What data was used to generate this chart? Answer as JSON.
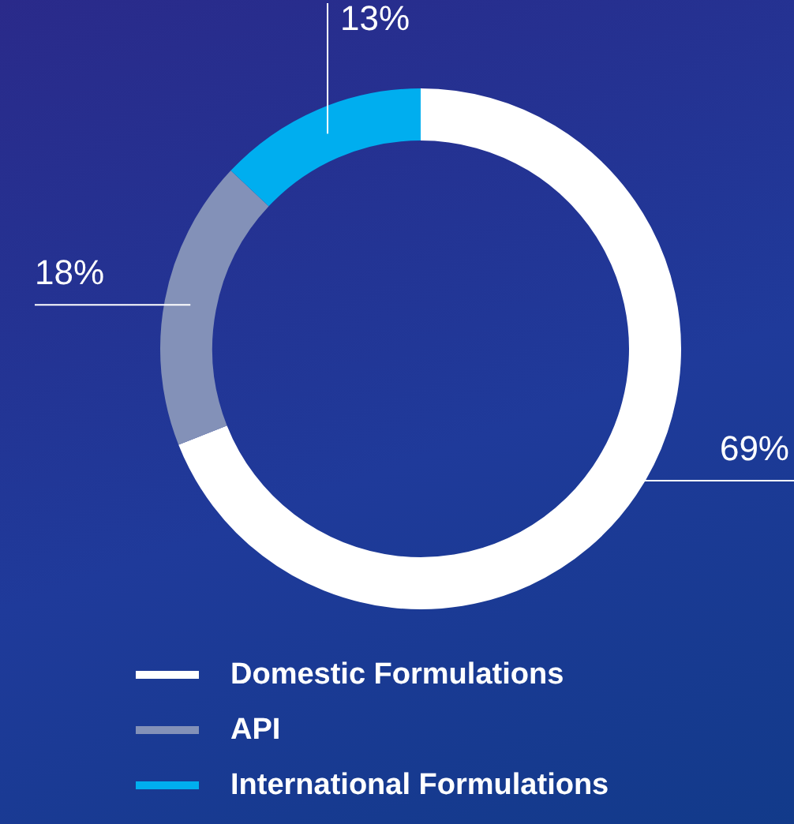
{
  "chart_data": {
    "type": "donut",
    "categories": [
      "Domestic Formulations",
      "API",
      "International Formulations"
    ],
    "values": [
      69,
      18,
      13
    ],
    "colors": [
      "#ffffff",
      "#8391b8",
      "#00aeef"
    ],
    "value_labels": [
      "69%",
      "18%",
      "13%"
    ],
    "legend": "bottom"
  }
}
